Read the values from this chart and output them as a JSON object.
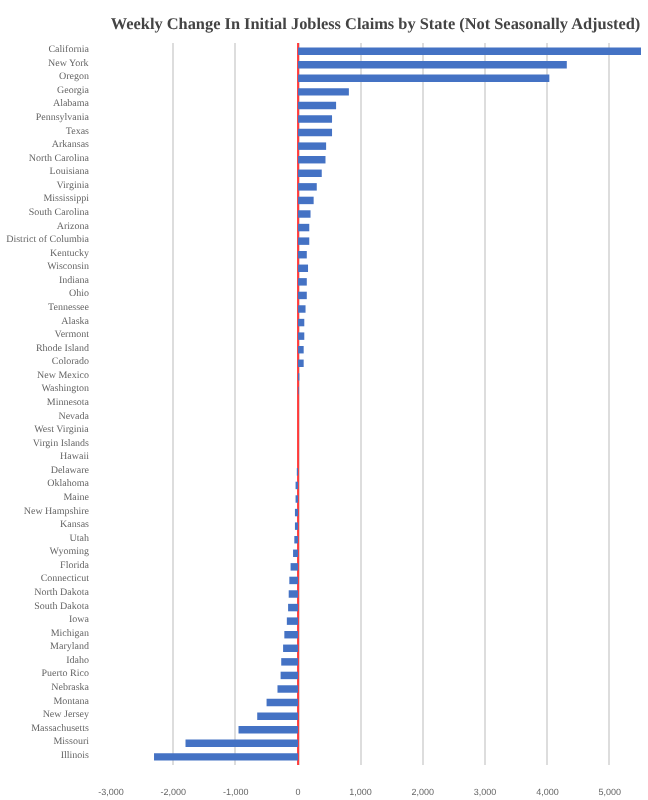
{
  "chart_data": {
    "type": "bar",
    "orientation": "horizontal",
    "title": "Weekly Change In Initial Jobless Claims by State (Not Seasonally Adjusted)",
    "categories": [
      "California",
      "New York",
      "Oregon",
      "Georgia",
      "Alabama",
      "Pennsylvania",
      "Texas",
      "Arkansas",
      "North Carolina",
      "Louisiana",
      "Virginia",
      "Mississippi",
      "South Carolina",
      "Arizona",
      "District of Columbia",
      "Kentucky",
      "Wisconsin",
      "Indiana",
      "Ohio",
      "Tennessee",
      "Alaska",
      "Vermont",
      "Rhode Island",
      "Colorado",
      "New Mexico",
      "Washington",
      "Minnesota",
      "Nevada",
      "West Virginia",
      "Virgin Islands",
      "Hawaii",
      "Delaware",
      "Oklahoma",
      "Maine",
      "New Hampshire",
      "Kansas",
      "Utah",
      "Wyoming",
      "Florida",
      "Connecticut",
      "North Dakota",
      "South Dakota",
      "Iowa",
      "Michigan",
      "Maryland",
      "Idaho",
      "Puerto Rico",
      "Nebraska",
      "Montana",
      "New Jersey",
      "Massachusetts",
      "Missouri",
      "Illinois"
    ],
    "values": [
      5500,
      4310,
      4030,
      815,
      610,
      545,
      545,
      450,
      440,
      380,
      300,
      250,
      200,
      180,
      180,
      140,
      160,
      140,
      140,
      120,
      100,
      100,
      90,
      90,
      20,
      10,
      null,
      0,
      0,
      0,
      null,
      -20,
      -40,
      -40,
      -50,
      -50,
      -60,
      -80,
      -120,
      -140,
      -150,
      -160,
      -180,
      -220,
      -240,
      -270,
      -280,
      -330,
      -505,
      -655,
      -955,
      -1805,
      -2310
    ],
    "color": "#4472c4",
    "xlim": [
      -3000,
      5500
    ],
    "xticks": [
      {
        "value": -3000,
        "label": "-3,000"
      },
      {
        "value": -2000,
        "label": "-2,000"
      },
      {
        "value": -1000,
        "label": "-1,000"
      },
      0,
      {
        "value": 1000,
        "label": "1,000"
      },
      {
        "value": 2000,
        "label": "2,000"
      },
      {
        "value": 3000,
        "label": "3,000"
      },
      {
        "value": 4000,
        "label": "4,000"
      },
      {
        "value": 5000,
        "label": "5,000"
      }
    ],
    "grid": "x",
    "ref_lines": [
      {
        "axis": "x",
        "value": 0,
        "color": "#ff3b3b"
      }
    ]
  }
}
